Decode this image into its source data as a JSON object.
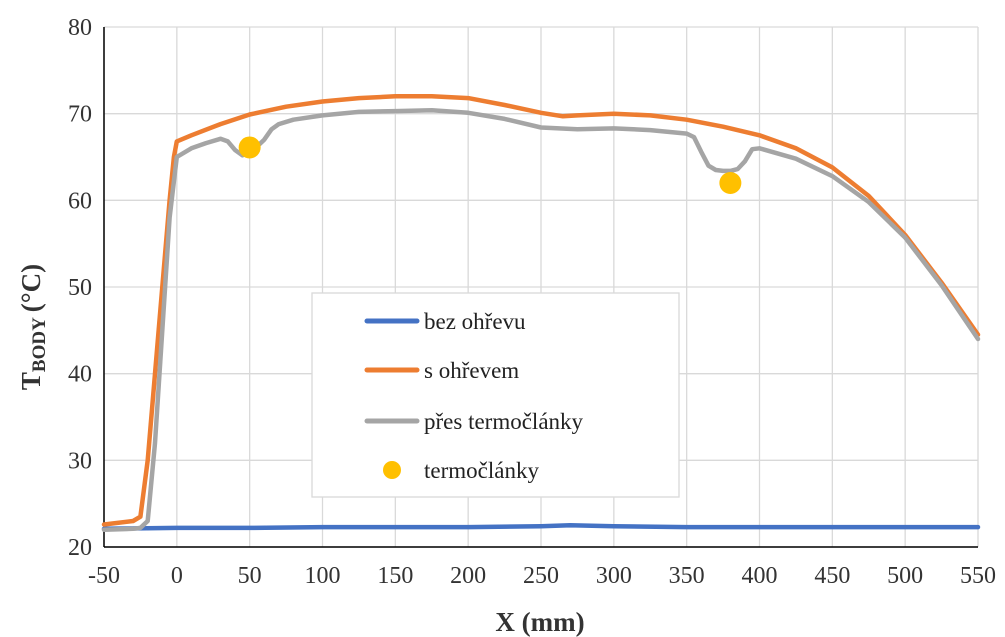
{
  "chart_data": {
    "type": "line",
    "xlabel": "X (mm)",
    "ylabel_main": "T",
    "ylabel_sub": "BODY",
    "ylabel_unit": "(°C)",
    "xlim": [
      -50,
      550
    ],
    "ylim": [
      20,
      80
    ],
    "x_ticks": [
      -50,
      0,
      50,
      100,
      150,
      200,
      250,
      300,
      350,
      400,
      450,
      500,
      550
    ],
    "y_ticks": [
      20,
      30,
      40,
      50,
      60,
      70,
      80
    ],
    "grid": true,
    "legend_position": "center",
    "series": [
      {
        "name": "bez ohřevu",
        "color": "#4472c4",
        "style": "line",
        "x": [
          -50,
          0,
          50,
          100,
          150,
          200,
          250,
          270,
          300,
          350,
          400,
          450,
          500,
          550
        ],
        "y": [
          22.1,
          22.2,
          22.2,
          22.3,
          22.3,
          22.3,
          22.4,
          22.5,
          22.4,
          22.3,
          22.3,
          22.3,
          22.3,
          22.3
        ]
      },
      {
        "name": "s ohřevem",
        "color": "#ed7d31",
        "style": "line",
        "x": [
          -50,
          -30,
          -25,
          -20,
          -15,
          -10,
          -5,
          -2,
          0,
          10,
          30,
          50,
          75,
          100,
          125,
          150,
          175,
          200,
          225,
          250,
          265,
          275,
          300,
          325,
          350,
          375,
          400,
          425,
          450,
          475,
          500,
          525,
          550
        ],
        "y": [
          22.6,
          23.0,
          23.5,
          30,
          40,
          50,
          60,
          65,
          66.8,
          67.5,
          68.8,
          69.9,
          70.8,
          71.4,
          71.8,
          72.0,
          72.0,
          71.8,
          71.0,
          70.1,
          69.7,
          69.8,
          70.0,
          69.8,
          69.3,
          68.5,
          67.5,
          66.0,
          63.8,
          60.5,
          56.0,
          50.5,
          44.5
        ]
      },
      {
        "name": "přes termočlánky",
        "color": "#a5a5a5",
        "style": "line",
        "x": [
          -50,
          -30,
          -25,
          -20,
          -15,
          -10,
          -5,
          0,
          10,
          20,
          30,
          35,
          40,
          45,
          50,
          55,
          60,
          65,
          70,
          80,
          100,
          125,
          150,
          175,
          200,
          225,
          250,
          275,
          300,
          325,
          350,
          355,
          360,
          365,
          370,
          375,
          380,
          385,
          390,
          395,
          400,
          425,
          450,
          475,
          500,
          525,
          550
        ],
        "y": [
          22.0,
          22.1,
          22.2,
          23.0,
          32,
          45,
          58,
          65.0,
          66.0,
          66.6,
          67.1,
          66.8,
          65.8,
          65.2,
          65.6,
          66.2,
          67.0,
          68.2,
          68.8,
          69.3,
          69.8,
          70.2,
          70.3,
          70.4,
          70.1,
          69.4,
          68.4,
          68.2,
          68.3,
          68.1,
          67.7,
          67.3,
          65.6,
          64.0,
          63.5,
          63.4,
          63.4,
          63.6,
          64.5,
          65.9,
          66.0,
          64.8,
          62.8,
          59.8,
          55.7,
          50.2,
          44.0
        ]
      },
      {
        "name": "termočlánky",
        "color": "#ffc000",
        "style": "markers",
        "x": [
          50,
          380
        ],
        "y": [
          66.1,
          62.0
        ]
      }
    ]
  }
}
